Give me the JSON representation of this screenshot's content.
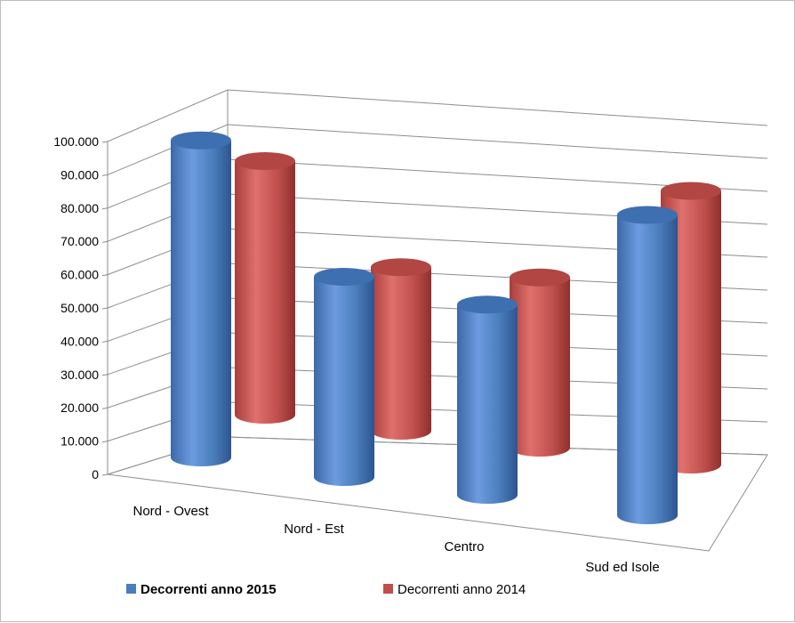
{
  "chart_data": {
    "type": "bar",
    "style": "3d-cylinder",
    "categories": [
      "Nord - Ovest",
      "Nord - Est",
      "Centro",
      "Sud ed Isole"
    ],
    "series": [
      {
        "name": "Decorrenti anno 2015",
        "color": "#4a7ebb",
        "values": [
          95000,
          60000,
          57000,
          90000
        ]
      },
      {
        "name": "Decorrenti anno 2014",
        "color": "#c0504d",
        "values": [
          76000,
          49000,
          51000,
          82000
        ]
      }
    ],
    "y_ticks": [
      "0",
      "10.000",
      "20.000",
      "30.000",
      "40.000",
      "50.000",
      "60.000",
      "70.000",
      "80.000",
      "90.000",
      "100.000"
    ],
    "ylim": [
      0,
      100000
    ],
    "grid": true,
    "legend_position": "bottom"
  }
}
